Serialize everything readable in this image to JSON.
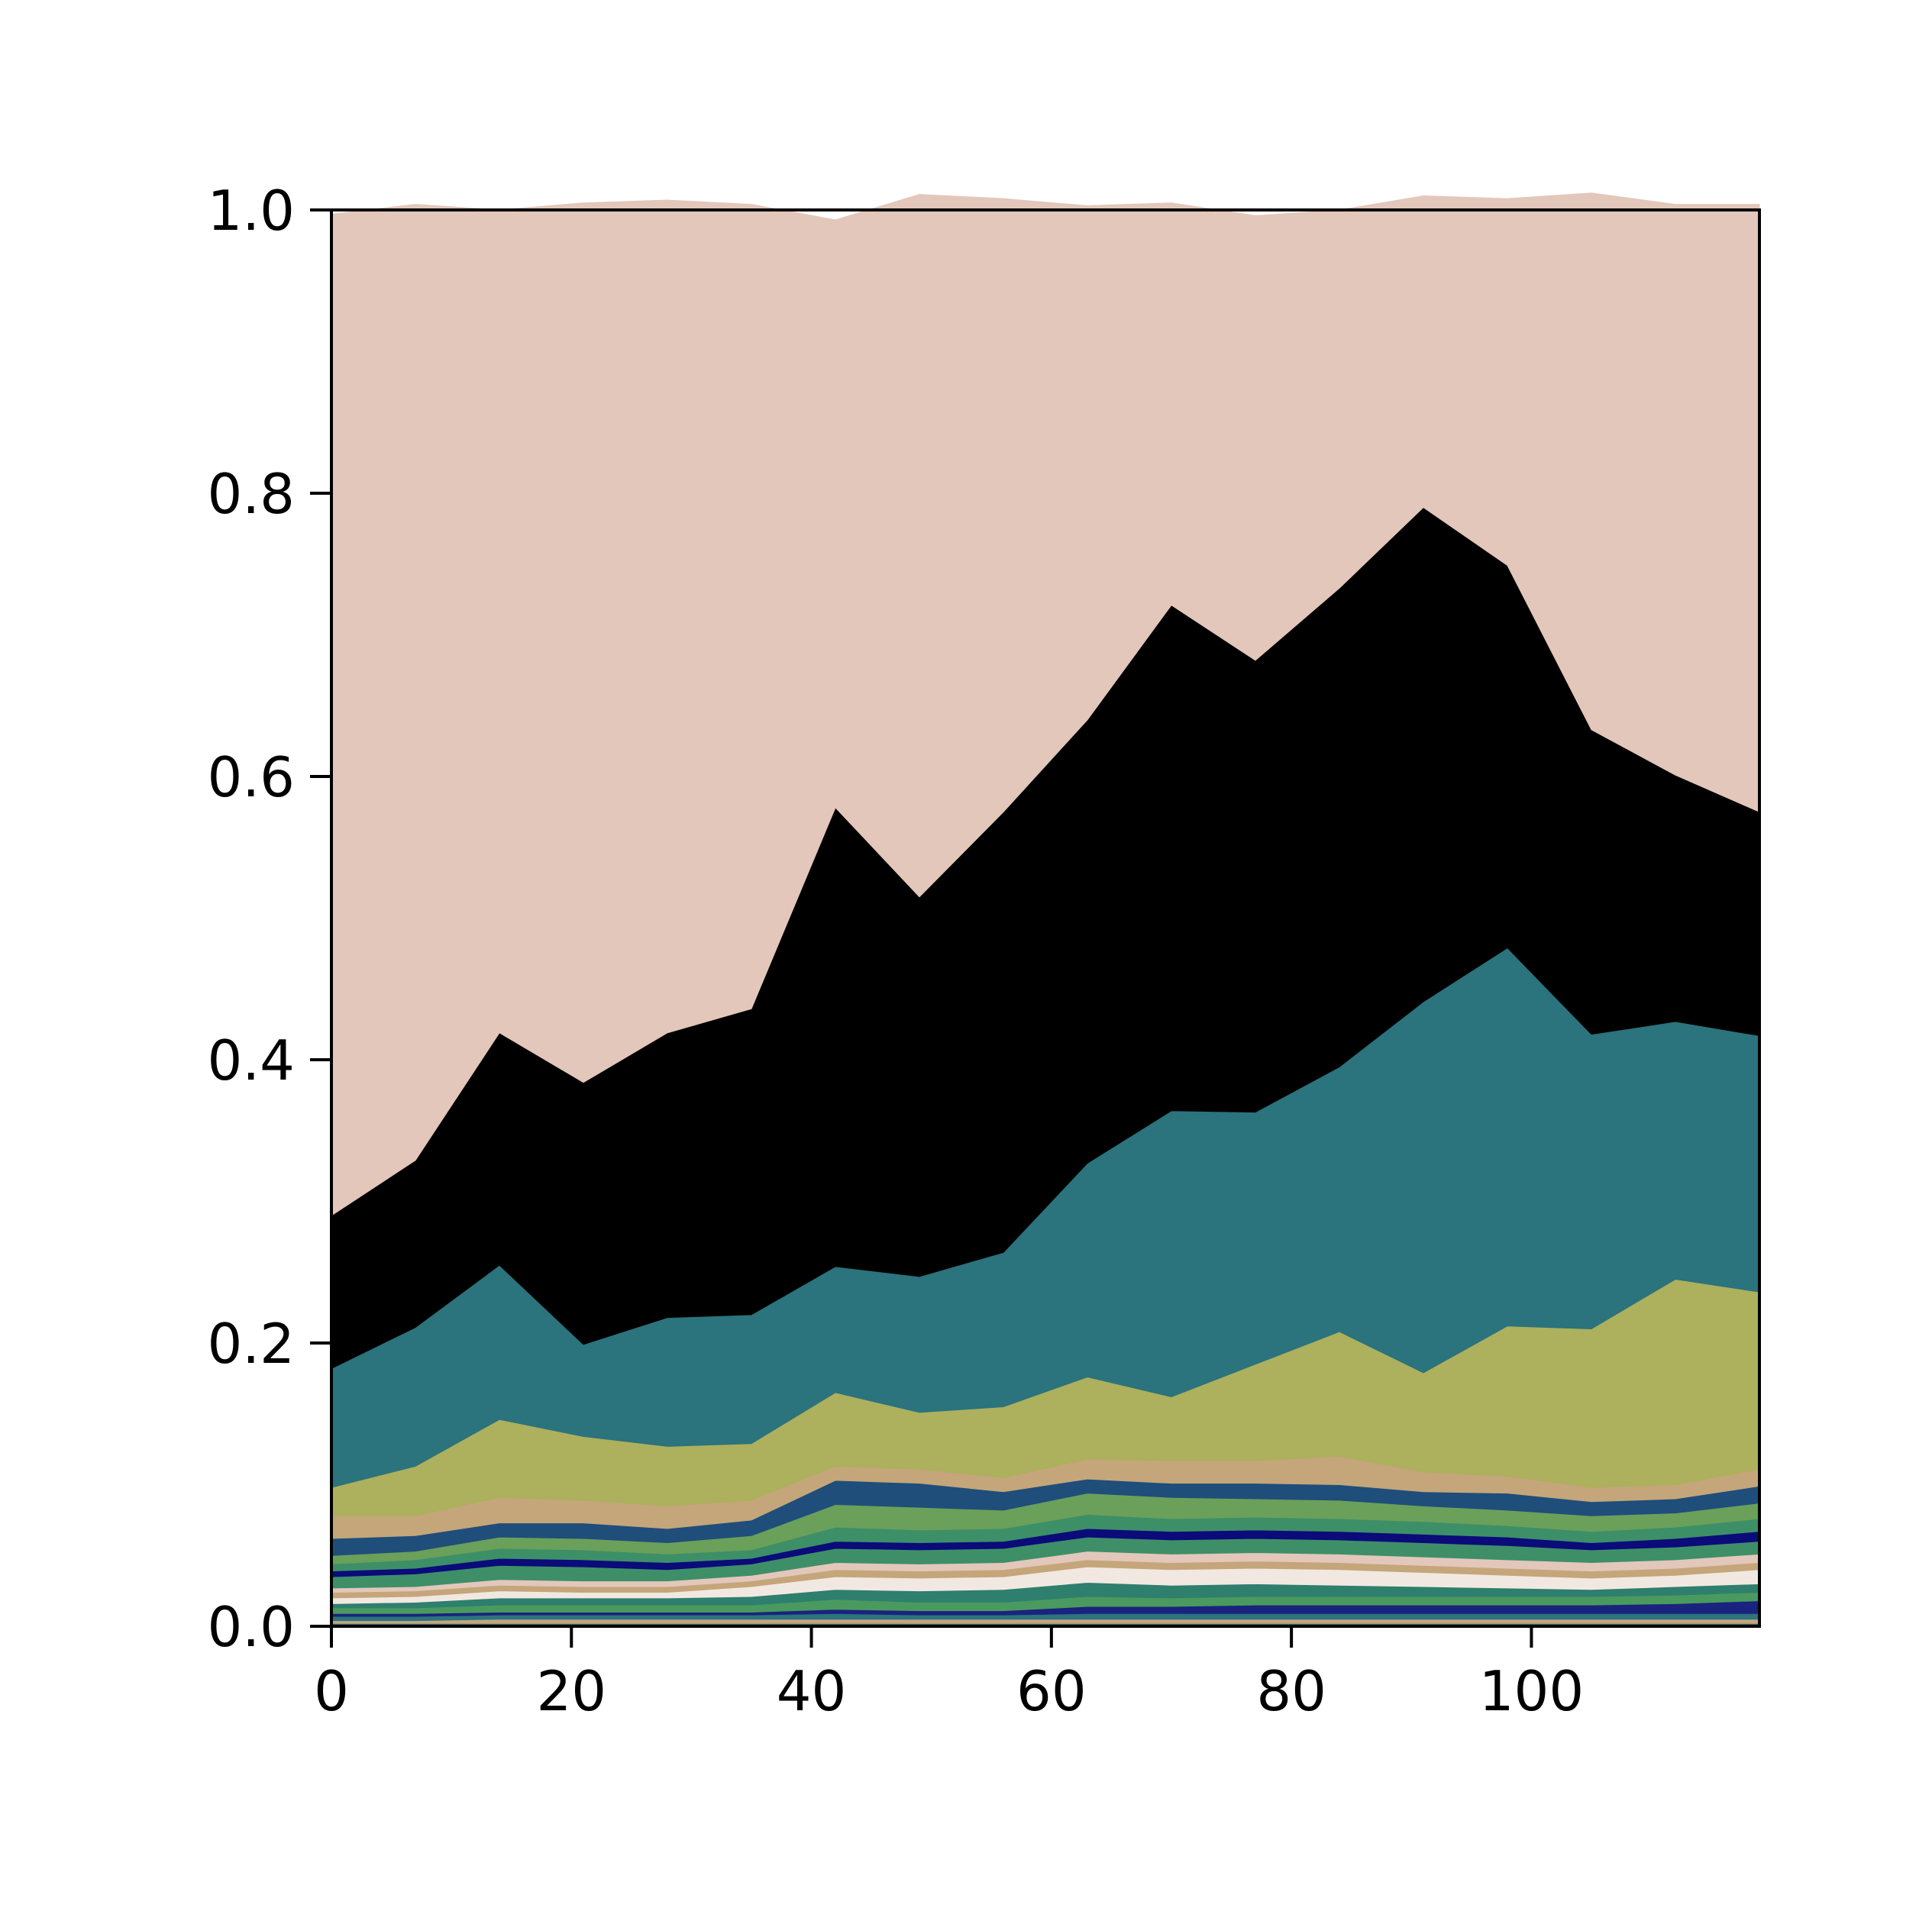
{
  "chart_data": {
    "type": "area",
    "stacked": true,
    "normalized": true,
    "x": [
      0,
      7,
      14,
      21,
      28,
      35,
      42,
      49,
      56,
      63,
      70,
      77,
      84,
      91,
      98,
      105,
      112,
      119
    ],
    "xlim": [
      0,
      119
    ],
    "ylim": [
      0,
      1
    ],
    "xticks": [
      0,
      20,
      40,
      60,
      80,
      100
    ],
    "yticks": [
      0.0,
      0.2,
      0.4,
      0.6,
      0.8,
      1.0
    ],
    "xtick_labels": [
      "0",
      "20",
      "40",
      "60",
      "80",
      "100"
    ],
    "ytick_labels": [
      "0.0",
      "0.2",
      "0.4",
      "0.6",
      "0.8",
      "1.0"
    ],
    "grid": false,
    "series": [
      {
        "color": "#3d6b7a",
        "values": [
          0.002,
          0.002,
          0.002,
          0.002,
          0.002,
          0.002,
          0.002,
          0.002,
          0.002,
          0.002,
          0.002,
          0.002,
          0.002,
          0.002,
          0.002,
          0.002,
          0.002,
          0.002
        ]
      },
      {
        "color": "#c4a67a",
        "values": [
          0.002,
          0.002,
          0.003,
          0.003,
          0.003,
          0.003,
          0.003,
          0.003,
          0.003,
          0.003,
          0.003,
          0.003,
          0.003,
          0.003,
          0.003,
          0.003,
          0.003,
          0.003
        ]
      },
      {
        "color": "#2b7480",
        "values": [
          0.003,
          0.003,
          0.003,
          0.003,
          0.003,
          0.003,
          0.004,
          0.003,
          0.003,
          0.004,
          0.004,
          0.004,
          0.004,
          0.004,
          0.004,
          0.004,
          0.004,
          0.004
        ]
      },
      {
        "color": "#1a237e",
        "values": [
          0.002,
          0.002,
          0.002,
          0.002,
          0.002,
          0.002,
          0.003,
          0.003,
          0.003,
          0.005,
          0.005,
          0.006,
          0.006,
          0.006,
          0.006,
          0.006,
          0.007,
          0.009
        ]
      },
      {
        "color": "#4a9a5f",
        "values": [
          0.004,
          0.004,
          0.005,
          0.005,
          0.005,
          0.005,
          0.007,
          0.006,
          0.006,
          0.007,
          0.006,
          0.006,
          0.006,
          0.006,
          0.006,
          0.006,
          0.006,
          0.006
        ]
      },
      {
        "color": "#2e7f6d",
        "values": [
          0.003,
          0.004,
          0.005,
          0.005,
          0.005,
          0.006,
          0.007,
          0.008,
          0.009,
          0.01,
          0.009,
          0.009,
          0.008,
          0.007,
          0.006,
          0.005,
          0.006,
          0.006
        ]
      },
      {
        "color": "#f2e8e2",
        "values": [
          0.004,
          0.004,
          0.005,
          0.004,
          0.004,
          0.007,
          0.009,
          0.009,
          0.009,
          0.011,
          0.011,
          0.011,
          0.011,
          0.01,
          0.009,
          0.008,
          0.008,
          0.01
        ]
      },
      {
        "color": "#c4a67a",
        "values": [
          0.004,
          0.004,
          0.004,
          0.004,
          0.004,
          0.004,
          0.005,
          0.005,
          0.005,
          0.005,
          0.005,
          0.005,
          0.005,
          0.005,
          0.005,
          0.005,
          0.005,
          0.005
        ]
      },
      {
        "color": "#e3c7bb",
        "values": [
          0.003,
          0.003,
          0.004,
          0.004,
          0.004,
          0.004,
          0.005,
          0.005,
          0.005,
          0.006,
          0.006,
          0.006,
          0.006,
          0.006,
          0.006,
          0.006,
          0.006,
          0.006
        ]
      },
      {
        "color": "#3e8f68",
        "values": [
          0.008,
          0.009,
          0.01,
          0.01,
          0.008,
          0.008,
          0.01,
          0.01,
          0.01,
          0.01,
          0.01,
          0.01,
          0.01,
          0.01,
          0.01,
          0.009,
          0.009,
          0.009
        ]
      },
      {
        "color": "#0b0b7a",
        "values": [
          0.004,
          0.004,
          0.005,
          0.005,
          0.005,
          0.004,
          0.005,
          0.005,
          0.005,
          0.006,
          0.006,
          0.006,
          0.006,
          0.006,
          0.006,
          0.005,
          0.006,
          0.007
        ]
      },
      {
        "color": "#3d8f68",
        "values": [
          0.005,
          0.006,
          0.007,
          0.007,
          0.006,
          0.006,
          0.01,
          0.009,
          0.009,
          0.01,
          0.009,
          0.009,
          0.009,
          0.009,
          0.008,
          0.008,
          0.008,
          0.009
        ]
      },
      {
        "color": "#6aa05a",
        "values": [
          0.006,
          0.006,
          0.008,
          0.008,
          0.008,
          0.01,
          0.016,
          0.016,
          0.013,
          0.015,
          0.015,
          0.013,
          0.013,
          0.011,
          0.011,
          0.011,
          0.01,
          0.011
        ]
      },
      {
        "color": "#1f4e7a",
        "values": [
          0.012,
          0.011,
          0.01,
          0.011,
          0.01,
          0.011,
          0.017,
          0.017,
          0.013,
          0.01,
          0.01,
          0.011,
          0.011,
          0.01,
          0.012,
          0.01,
          0.01,
          0.012
        ]
      },
      {
        "color": "#c4a67a",
        "values": [
          0.016,
          0.014,
          0.018,
          0.016,
          0.016,
          0.014,
          0.01,
          0.01,
          0.01,
          0.014,
          0.016,
          0.016,
          0.02,
          0.014,
          0.012,
          0.01,
          0.01,
          0.012
        ]
      },
      {
        "color": "#adb05c",
        "values": [
          0.02,
          0.035,
          0.055,
          0.045,
          0.042,
          0.04,
          0.052,
          0.04,
          0.05,
          0.058,
          0.045,
          0.068,
          0.088,
          0.07,
          0.106,
          0.112,
          0.145,
          0.125
        ]
      },
      {
        "color": "#2b737d",
        "values": [
          0.084,
          0.098,
          0.109,
          0.065,
          0.091,
          0.091,
          0.089,
          0.096,
          0.109,
          0.151,
          0.202,
          0.178,
          0.187,
          0.262,
          0.267,
          0.208,
          0.182,
          0.181
        ]
      },
      {
        "color": "#000000",
        "values": [
          0.108,
          0.118,
          0.164,
          0.185,
          0.201,
          0.216,
          0.324,
          0.268,
          0.311,
          0.313,
          0.357,
          0.319,
          0.338,
          0.349,
          0.27,
          0.215,
          0.174,
          0.158
        ]
      },
      {
        "color": "#e3c7bb",
        "values": [
          0.707,
          0.675,
          0.581,
          0.621,
          0.588,
          0.568,
          0.415,
          0.496,
          0.433,
          0.363,
          0.284,
          0.314,
          0.267,
          0.22,
          0.259,
          0.379,
          0.403,
          0.429
        ]
      }
    ]
  }
}
